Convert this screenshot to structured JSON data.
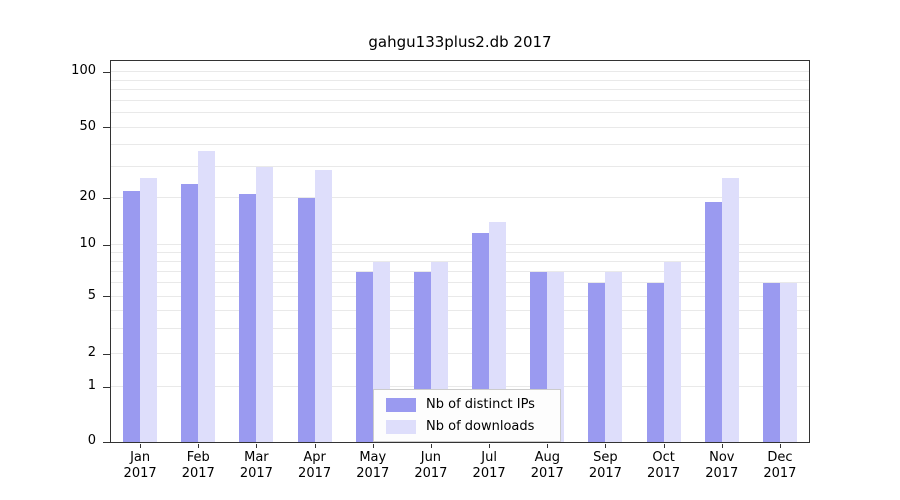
{
  "chart_data": {
    "type": "bar",
    "title": "gahgu133plus2.db 2017",
    "categories": [
      "Jan",
      "Feb",
      "Mar",
      "Apr",
      "May",
      "Jun",
      "Jul",
      "Aug",
      "Sep",
      "Oct",
      "Nov",
      "Dec"
    ],
    "category_year": "2017",
    "series": [
      {
        "name": "Nb of distinct IPs",
        "color": "#9a9af0",
        "values": [
          22,
          24,
          21,
          20,
          7,
          7,
          12,
          7,
          6,
          6,
          19,
          6
        ]
      },
      {
        "name": "Nb of downloads",
        "color": "#dedefb",
        "values": [
          26,
          37,
          30,
          29,
          8,
          8,
          14,
          7,
          7,
          8,
          26,
          6
        ]
      }
    ],
    "y_ticks": [
      100,
      50,
      20,
      10,
      5,
      2,
      1,
      0
    ],
    "y_scale": "log",
    "ylim": [
      0,
      110
    ],
    "grid": true,
    "legend_position": "bottom-center"
  },
  "colors": {
    "grid": "#e9e9e9",
    "axis": "#333333",
    "background": "#ffffff"
  }
}
